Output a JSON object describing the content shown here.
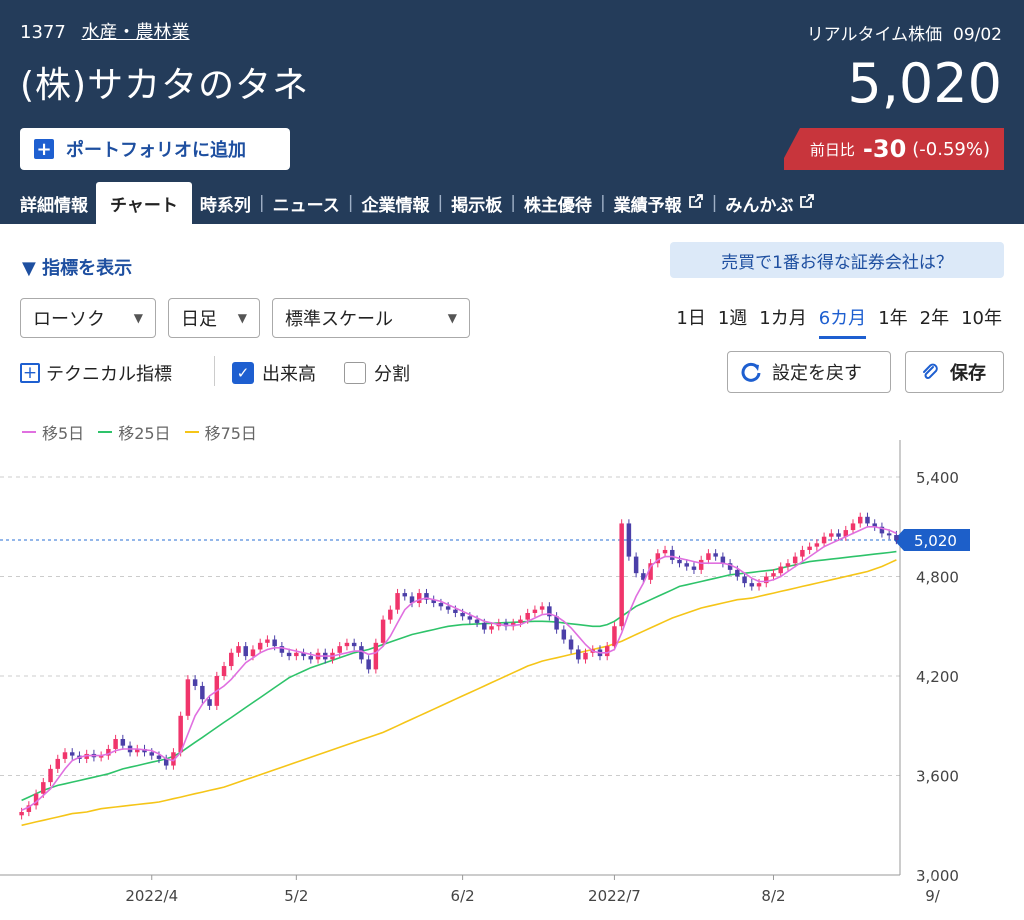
{
  "header": {
    "code": "1377",
    "sector": "水産・農林業",
    "company": "(株)サカタのタネ",
    "realtime_label": "リアルタイム株価",
    "date": "09/02",
    "price": "5,020",
    "portfolio_button": "ポートフォリオに追加",
    "change_label": "前日比",
    "change_value": "-30",
    "change_pct": "(-0.59%)"
  },
  "tabs": [
    {
      "label": "詳細情報"
    },
    {
      "label": "チャート"
    },
    {
      "label": "時系列"
    },
    {
      "label": "ニュース"
    },
    {
      "label": "企業情報"
    },
    {
      "label": "掲示板"
    },
    {
      "label": "株主優待"
    },
    {
      "label": "業績予報"
    },
    {
      "label": "みんかぶ"
    }
  ],
  "controls": {
    "indicator_toggle": "▼ 指標を表示",
    "broker_banner": "売買で1番お得な証券会社は？",
    "chart_type": "ローソク",
    "interval": "日足",
    "scale": "標準スケール",
    "periods": [
      "1日",
      "1週",
      "1カ月",
      "6カ月",
      "1年",
      "2年",
      "10年"
    ],
    "active_period": "6カ月",
    "technical": "テクニカル指標",
    "volume": "出来高",
    "split": "分割",
    "reset": "設定を戻す",
    "save": "保存"
  },
  "colors": {
    "header_bg": "#243c5a",
    "accent": "#1e5fd0",
    "down": "#c8353c",
    "candle_up": "#f0356b",
    "candle_down": "#4b3fa8",
    "ma5": "#e070e0",
    "ma25": "#2ec36a",
    "ma75": "#f5c518"
  },
  "chart_data": {
    "type": "candlestick",
    "legend": [
      {
        "name": "移5日",
        "color": "#e070e0"
      },
      {
        "name": "移25日",
        "color": "#2ec36a"
      },
      {
        "name": "移75日",
        "color": "#f5c518"
      }
    ],
    "ylim": [
      3000,
      5600
    ],
    "yticks": [
      "5,400",
      "4,800",
      "4,200",
      "3,600",
      "3,000"
    ],
    "ytick_values": [
      5400,
      4800,
      4200,
      3600,
      3000
    ],
    "current_price": 5020,
    "current_price_label": "5,020",
    "xticks": [
      {
        "label": "2022/4",
        "index": 18
      },
      {
        "label": "5/2",
        "index": 38
      },
      {
        "label": "6/2",
        "index": 61
      },
      {
        "label": "2022/7",
        "index": 82
      },
      {
        "label": "8/2",
        "index": 104
      },
      {
        "label": "9/",
        "index": 126
      }
    ],
    "closes": [
      3380,
      3420,
      3490,
      3560,
      3640,
      3700,
      3740,
      3720,
      3700,
      3730,
      3710,
      3720,
      3760,
      3820,
      3780,
      3740,
      3760,
      3740,
      3720,
      3700,
      3660,
      3740,
      3960,
      4180,
      4140,
      4060,
      4020,
      4200,
      4260,
      4340,
      4380,
      4320,
      4360,
      4400,
      4420,
      4380,
      4340,
      4320,
      4340,
      4320,
      4300,
      4340,
      4300,
      4340,
      4380,
      4400,
      4380,
      4300,
      4240,
      4400,
      4540,
      4600,
      4700,
      4680,
      4640,
      4700,
      4660,
      4640,
      4620,
      4600,
      4580,
      4560,
      4540,
      4520,
      4480,
      4500,
      4520,
      4500,
      4520,
      4540,
      4580,
      4600,
      4620,
      4560,
      4480,
      4420,
      4360,
      4300,
      4340,
      4360,
      4320,
      4380,
      4500,
      5120,
      4920,
      4820,
      4780,
      4880,
      4940,
      4960,
      4900,
      4880,
      4860,
      4840,
      4900,
      4940,
      4920,
      4880,
      4840,
      4800,
      4760,
      4740,
      4760,
      4800,
      4820,
      4860,
      4880,
      4920,
      4960,
      4980,
      5000,
      5040,
      5060,
      5040,
      5080,
      5120,
      5160,
      5120,
      5100,
      5060,
      5050,
      5020
    ],
    "ma5": [
      3390,
      3410,
      3440,
      3480,
      3520,
      3580,
      3640,
      3690,
      3710,
      3720,
      3720,
      3720,
      3730,
      3750,
      3760,
      3760,
      3760,
      3755,
      3750,
      3730,
      3700,
      3690,
      3740,
      3850,
      3960,
      4030,
      4080,
      4110,
      4140,
      4180,
      4230,
      4280,
      4310,
      4340,
      4360,
      4370,
      4370,
      4360,
      4350,
      4340,
      4330,
      4320,
      4320,
      4320,
      4330,
      4340,
      4350,
      4350,
      4330,
      4340,
      4380,
      4440,
      4520,
      4600,
      4640,
      4660,
      4670,
      4660,
      4650,
      4630,
      4610,
      4590,
      4570,
      4550,
      4530,
      4520,
      4510,
      4505,
      4505,
      4510,
      4530,
      4550,
      4570,
      4575,
      4560,
      4530,
      4490,
      4440,
      4390,
      4350,
      4340,
      4340,
      4360,
      4460,
      4580,
      4680,
      4760,
      4860,
      4900,
      4920,
      4920,
      4910,
      4900,
      4890,
      4880,
      4880,
      4880,
      4880,
      4870,
      4850,
      4820,
      4790,
      4770,
      4770,
      4780,
      4800,
      4830,
      4860,
      4890,
      4920,
      4950,
      4980,
      5000,
      5020,
      5040,
      5060,
      5080,
      5100,
      5100,
      5090,
      5080,
      5060
    ],
    "ma25": [
      3450,
      3470,
      3490,
      3510,
      3525,
      3540,
      3550,
      3560,
      3570,
      3580,
      3590,
      3600,
      3610,
      3625,
      3640,
      3650,
      3660,
      3670,
      3680,
      3690,
      3700,
      3715,
      3740,
      3770,
      3800,
      3830,
      3860,
      3890,
      3920,
      3950,
      3980,
      4010,
      4040,
      4070,
      4100,
      4130,
      4160,
      4190,
      4210,
      4230,
      4250,
      4265,
      4280,
      4295,
      4310,
      4325,
      4340,
      4350,
      4360,
      4375,
      4390,
      4405,
      4420,
      4435,
      4450,
      4460,
      4470,
      4480,
      4490,
      4500,
      4505,
      4510,
      4512,
      4514,
      4516,
      4518,
      4520,
      4522,
      4524,
      4526,
      4528,
      4530,
      4530,
      4528,
      4525,
      4520,
      4515,
      4510,
      4505,
      4500,
      4500,
      4510,
      4530,
      4560,
      4590,
      4620,
      4640,
      4660,
      4680,
      4700,
      4720,
      4740,
      4750,
      4760,
      4770,
      4780,
      4790,
      4800,
      4810,
      4815,
      4820,
      4825,
      4830,
      4835,
      4840,
      4850,
      4860,
      4870,
      4880,
      4890,
      4895,
      4900,
      4905,
      4910,
      4915,
      4920,
      4925,
      4930,
      4935,
      4940,
      4945,
      4950
    ],
    "ma75": [
      3300,
      3310,
      3320,
      3330,
      3340,
      3350,
      3360,
      3370,
      3375,
      3380,
      3390,
      3400,
      3405,
      3410,
      3415,
      3420,
      3425,
      3430,
      3435,
      3440,
      3450,
      3460,
      3470,
      3480,
      3490,
      3500,
      3510,
      3520,
      3530,
      3545,
      3560,
      3575,
      3590,
      3605,
      3620,
      3635,
      3650,
      3665,
      3680,
      3695,
      3710,
      3725,
      3740,
      3755,
      3770,
      3785,
      3800,
      3815,
      3830,
      3845,
      3860,
      3880,
      3900,
      3920,
      3940,
      3960,
      3980,
      4000,
      4020,
      4040,
      4060,
      4080,
      4100,
      4120,
      4140,
      4160,
      4180,
      4200,
      4220,
      4240,
      4260,
      4275,
      4290,
      4300,
      4310,
      4320,
      4330,
      4340,
      4350,
      4360,
      4370,
      4380,
      4395,
      4410,
      4430,
      4450,
      4470,
      4490,
      4510,
      4530,
      4550,
      4565,
      4580,
      4595,
      4610,
      4620,
      4630,
      4640,
      4650,
      4660,
      4665,
      4670,
      4680,
      4690,
      4700,
      4710,
      4720,
      4730,
      4740,
      4750,
      4760,
      4770,
      4780,
      4790,
      4800,
      4810,
      4820,
      4830,
      4845,
      4860,
      4880,
      4900
    ]
  }
}
